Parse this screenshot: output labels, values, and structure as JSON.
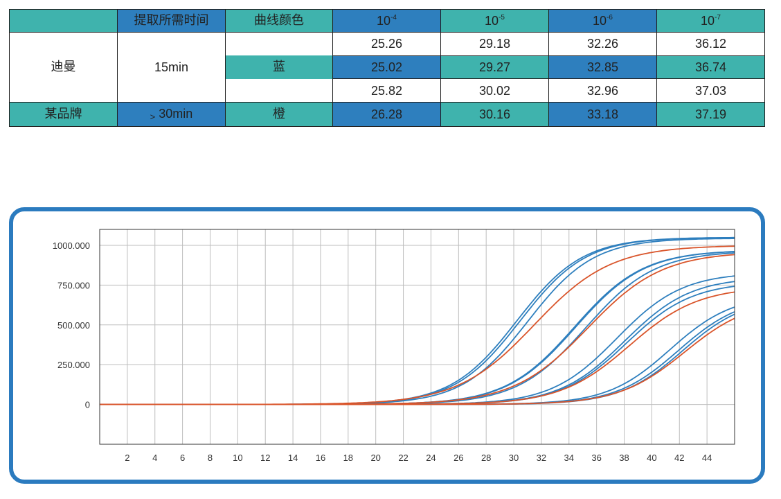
{
  "table": {
    "header": {
      "extract_time": "提取所需时间",
      "curve_color": "曲线颜色",
      "dilution_base": "10",
      "dilution_exps": [
        "-4",
        "-5",
        "-6",
        "-7"
      ]
    },
    "rows": {
      "diman": {
        "brand": "迪曼",
        "time": "15min",
        "color": "蓝",
        "values": [
          [
            "25.26",
            "29.18",
            "32.26",
            "36.12"
          ],
          [
            "25.02",
            "29.27",
            "32.85",
            "36.74"
          ],
          [
            "25.82",
            "30.02",
            "32.96",
            "37.03"
          ]
        ]
      },
      "other": {
        "brand": "某品牌",
        "time_prefix": ">",
        "time": "30min",
        "color": "橙",
        "values": [
          "26.28",
          "30.16",
          "33.18",
          "37.19"
        ]
      }
    }
  },
  "chart_data": {
    "type": "line",
    "xlim": [
      0,
      46
    ],
    "ylim": [
      -250,
      1100
    ],
    "x_ticks": [
      "2",
      "4",
      "6",
      "8",
      "10",
      "12",
      "14",
      "16",
      "18",
      "20",
      "22",
      "24",
      "26",
      "28",
      "30",
      "32",
      "34",
      "36",
      "38",
      "40",
      "42",
      "44"
    ],
    "y_ticks": [
      "0",
      "250.000",
      "500.000",
      "750.000",
      "1000.000"
    ],
    "y_tick_values": [
      0,
      250,
      500,
      750,
      1000
    ],
    "grid": true,
    "colors": {
      "blue": "#2e7fbe",
      "orange": "#d9542a"
    },
    "series": [
      {
        "color": "blue",
        "ct": 25.26,
        "plateau": 1050,
        "k": 0.42
      },
      {
        "color": "blue",
        "ct": 25.02,
        "plateau": 1050,
        "k": 0.42
      },
      {
        "color": "blue",
        "ct": 25.82,
        "plateau": 1045,
        "k": 0.42
      },
      {
        "color": "orange",
        "ct": 26.28,
        "plateau": 1000,
        "k": 0.36
      },
      {
        "color": "blue",
        "ct": 29.18,
        "plateau": 970,
        "k": 0.4
      },
      {
        "color": "blue",
        "ct": 29.27,
        "plateau": 970,
        "k": 0.4
      },
      {
        "color": "blue",
        "ct": 30.02,
        "plateau": 965,
        "k": 0.4
      },
      {
        "color": "orange",
        "ct": 30.16,
        "plateau": 960,
        "k": 0.37
      },
      {
        "color": "blue",
        "ct": 32.26,
        "plateau": 830,
        "k": 0.42
      },
      {
        "color": "blue",
        "ct": 32.85,
        "plateau": 800,
        "k": 0.42
      },
      {
        "color": "blue",
        "ct": 32.96,
        "plateau": 770,
        "k": 0.42
      },
      {
        "color": "orange",
        "ct": 33.18,
        "plateau": 740,
        "k": 0.4
      },
      {
        "color": "blue",
        "ct": 36.12,
        "plateau": 690,
        "k": 0.44
      },
      {
        "color": "blue",
        "ct": 36.74,
        "plateau": 680,
        "k": 0.44
      },
      {
        "color": "blue",
        "ct": 37.03,
        "plateau": 675,
        "k": 0.44
      },
      {
        "color": "orange",
        "ct": 37.19,
        "plateau": 660,
        "k": 0.42
      }
    ]
  }
}
